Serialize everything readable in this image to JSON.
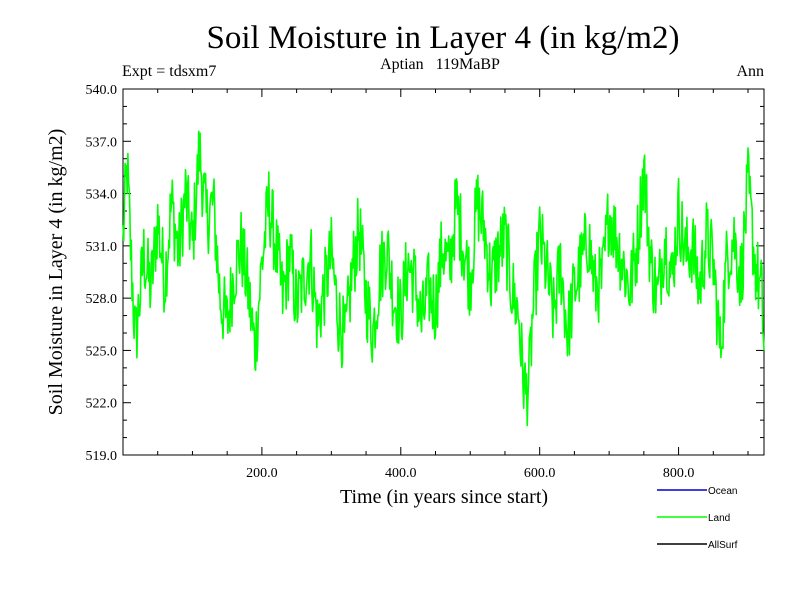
{
  "chart_data": {
    "type": "line",
    "title": "Soil Moisture in Layer 4 (in kg/m2)",
    "subtitle": "Aptian   119MaBP",
    "left_label": "Expt = tdsxm7",
    "right_label": "Ann",
    "xlabel": "Time (in years since start)",
    "ylabel": "Soil Moisture in Layer 4 (in kg/m2)",
    "xlim": [
      0,
      923
    ],
    "ylim": [
      519,
      540
    ],
    "xticks": [
      200,
      400,
      600,
      800
    ],
    "xtick_labels": [
      "200.0",
      "400.0",
      "600.0",
      "800.0"
    ],
    "yticks": [
      519,
      522,
      525,
      528,
      531,
      534,
      537,
      540
    ],
    "ytick_labels": [
      "519.0",
      "522.0",
      "525.0",
      "528.0",
      "531.0",
      "534.0",
      "537.0",
      "540.0"
    ],
    "legend": [
      {
        "name": "Ocean",
        "color": "#0000cc"
      },
      {
        "name": "Land",
        "color": "#00ff00"
      },
      {
        "name": "AllSurf",
        "color": "#000000"
      }
    ],
    "series": [
      {
        "name": "Land",
        "color": "#00ff00",
        "x": [
          0,
          6,
          12,
          18,
          24,
          30,
          40,
          50,
          60,
          70,
          80,
          90,
          100,
          110,
          120,
          130,
          140,
          150,
          160,
          170,
          180,
          190,
          200,
          210,
          220,
          230,
          240,
          250,
          260,
          270,
          280,
          290,
          300,
          310,
          320,
          330,
          340,
          350,
          360,
          370,
          380,
          390,
          400,
          410,
          420,
          430,
          440,
          450,
          460,
          470,
          480,
          490,
          500,
          510,
          520,
          530,
          540,
          550,
          560,
          570,
          575,
          580,
          585,
          590,
          600,
          610,
          620,
          630,
          640,
          650,
          660,
          670,
          680,
          690,
          700,
          710,
          720,
          730,
          740,
          750,
          760,
          770,
          780,
          790,
          800,
          810,
          820,
          830,
          840,
          850,
          860,
          870,
          880,
          890,
          900,
          910,
          920,
          923
        ],
        "values": [
          531.5,
          535.5,
          530.0,
          525.5,
          528.0,
          530.5,
          528.5,
          532.5,
          529.0,
          533.5,
          530.5,
          534.0,
          531.0,
          536.5,
          532.5,
          533.5,
          528.0,
          526.5,
          529.5,
          531.0,
          528.5,
          525.0,
          530.0,
          533.5,
          531.0,
          528.0,
          530.5,
          527.5,
          529.0,
          530.5,
          526.5,
          528.5,
          530.5,
          527.0,
          525.5,
          529.5,
          532.0,
          528.0,
          526.0,
          529.5,
          531.0,
          528.0,
          527.0,
          530.0,
          529.0,
          526.5,
          528.5,
          527.5,
          531.0,
          529.5,
          533.5,
          531.0,
          529.0,
          533.5,
          532.0,
          529.0,
          530.5,
          531.5,
          528.5,
          527.0,
          524.0,
          522.5,
          523.5,
          527.0,
          531.5,
          529.5,
          527.0,
          530.0,
          526.0,
          528.5,
          530.0,
          531.5,
          528.5,
          529.0,
          533.0,
          531.5,
          530.0,
          528.5,
          531.0,
          535.5,
          530.0,
          528.0,
          531.5,
          529.0,
          533.0,
          530.5,
          531.0,
          528.5,
          531.5,
          530.0,
          525.0,
          530.5,
          531.5,
          529.0,
          534.5,
          530.0,
          528.0,
          525.0
        ]
      }
    ]
  }
}
